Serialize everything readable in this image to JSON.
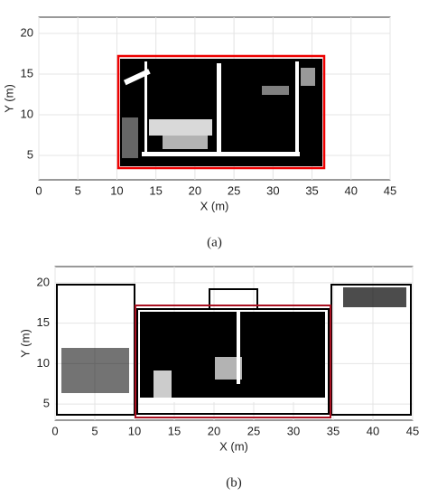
{
  "chart_data": [
    {
      "type": "occupancy-map",
      "xlabel": "X (m)",
      "ylabel": "Y (m)",
      "caption": "(a)",
      "xlim": [
        0,
        45
      ],
      "ylim": [
        2,
        22
      ],
      "xticks": [
        0,
        5,
        10,
        15,
        20,
        25,
        30,
        35,
        40,
        45
      ],
      "yticks": [
        5,
        10,
        15,
        20
      ],
      "grid": true
    },
    {
      "type": "occupancy-map",
      "xlabel": "X (m)",
      "ylabel": "Y (m)",
      "caption": "(b)",
      "xlim": [
        0,
        45
      ],
      "ylim": [
        3,
        22
      ],
      "xticks": [
        0,
        5,
        10,
        15,
        20,
        25,
        30,
        35,
        40,
        45
      ],
      "yticks": [
        5,
        10,
        15,
        20
      ],
      "grid": true
    }
  ]
}
